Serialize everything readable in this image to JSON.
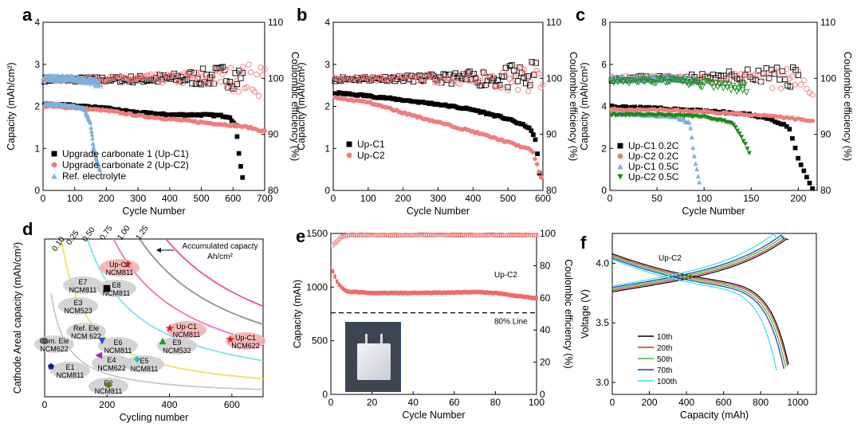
{
  "chart_data": [
    {
      "id": "a",
      "type": "scatter",
      "panel_label": "a",
      "xlabel": "Cycle Number",
      "ylabel": "Capacity (mAh/cm²)",
      "y2label": "Coulombic efficiency (%)",
      "xlim": [
        0,
        700
      ],
      "ylim": [
        0,
        4
      ],
      "y2lim": [
        80,
        110
      ],
      "xticks": [
        0,
        100,
        200,
        300,
        400,
        500,
        600,
        700
      ],
      "yticks": [
        0,
        1,
        2,
        3,
        4
      ],
      "y2ticks": [
        80,
        90,
        100,
        110
      ],
      "legend": [
        "Upgrade carbonate 1 (Up-C1)",
        "Upgrade carbonate 2 (Up-C2)",
        "Ref. electrolyte"
      ],
      "series": [
        {
          "name": "Upgrade carbonate 1 (Up-C1)",
          "color": "#000000",
          "marker": "square",
          "capacity": [
            [
              5,
              2.05
            ],
            [
              100,
              2.02
            ],
            [
              200,
              1.95
            ],
            [
              300,
              1.85
            ],
            [
              400,
              1.8
            ],
            [
              500,
              1.8
            ],
            [
              560,
              1.78
            ],
            [
              590,
              1.75
            ],
            [
              610,
              1.5
            ],
            [
              620,
              0.8
            ],
            [
              630,
              0.3
            ]
          ],
          "ce": [
            [
              5,
              99.8
            ],
            [
              200,
              99.8
            ],
            [
              400,
              99.9
            ],
            [
              500,
              100.2
            ],
            [
              600,
              100.5
            ],
            [
              630,
              100
            ]
          ]
        },
        {
          "name": "Upgrade carbonate 2 (Up-C2)",
          "color": "#f07c7c",
          "marker": "circle",
          "capacity": [
            [
              5,
              2.0
            ],
            [
              100,
              1.97
            ],
            [
              200,
              1.9
            ],
            [
              300,
              1.78
            ],
            [
              400,
              1.7
            ],
            [
              500,
              1.62
            ],
            [
              600,
              1.55
            ],
            [
              650,
              1.5
            ],
            [
              700,
              1.4
            ]
          ],
          "ce": [
            [
              5,
              99.8
            ],
            [
              200,
              99.9
            ],
            [
              400,
              100
            ],
            [
              600,
              100
            ],
            [
              700,
              99.9
            ]
          ]
        },
        {
          "name": "Ref. electrolyte",
          "color": "#7fb0dc",
          "marker": "triangle",
          "capacity": [
            [
              5,
              2.05
            ],
            [
              50,
              2.05
            ],
            [
              100,
              2.0
            ],
            [
              130,
              1.95
            ],
            [
              150,
              1.6
            ],
            [
              160,
              1.0
            ],
            [
              170,
              0.7
            ],
            [
              180,
              0.5
            ]
          ],
          "ce": [
            [
              5,
              100
            ],
            [
              100,
              100
            ],
            [
              150,
              99.5
            ],
            [
              180,
              99
            ]
          ]
        }
      ]
    },
    {
      "id": "b",
      "type": "scatter",
      "panel_label": "b",
      "xlabel": "Cycle Number",
      "ylabel": "Capacity (mAh/cm²)",
      "y2label": "Coulombic efficiency (%)",
      "xlim": [
        0,
        600
      ],
      "ylim": [
        0,
        4
      ],
      "y2lim": [
        80,
        110
      ],
      "xticks": [
        0,
        100,
        200,
        300,
        400,
        500,
        600
      ],
      "yticks": [
        0,
        1,
        2,
        3,
        4
      ],
      "y2ticks": [
        80,
        90,
        100,
        110
      ],
      "legend": [
        "Up-C1",
        "Up-C2"
      ],
      "series": [
        {
          "name": "Up-C1",
          "color": "#000000",
          "marker": "square",
          "capacity": [
            [
              5,
              2.32
            ],
            [
              100,
              2.25
            ],
            [
              200,
              2.15
            ],
            [
              300,
              2.05
            ],
            [
              400,
              1.92
            ],
            [
              500,
              1.7
            ],
            [
              560,
              1.5
            ],
            [
              580,
              1.2
            ],
            [
              590,
              0.4
            ]
          ],
          "ce": [
            [
              5,
              99.9
            ],
            [
              200,
              100
            ],
            [
              400,
              100
            ],
            [
              580,
              100.2
            ]
          ]
        },
        {
          "name": "Up-C2",
          "color": "#f07c7c",
          "marker": "circle",
          "capacity": [
            [
              5,
              2.2
            ],
            [
              100,
              2.1
            ],
            [
              200,
              1.85
            ],
            [
              300,
              1.62
            ],
            [
              400,
              1.4
            ],
            [
              500,
              1.15
            ],
            [
              570,
              0.95
            ],
            [
              595,
              0.3
            ]
          ],
          "ce": [
            [
              5,
              99.9
            ],
            [
              300,
              100
            ],
            [
              600,
              99.8
            ]
          ]
        }
      ]
    },
    {
      "id": "c",
      "type": "scatter",
      "panel_label": "c",
      "xlabel": "Cycle Number",
      "ylabel": "Capacity (mAh/cm²)",
      "y2label": "Coulombic efficiency (%)",
      "xlim": [
        0,
        220
      ],
      "ylim": [
        0,
        8
      ],
      "y2lim": [
        80,
        110
      ],
      "xticks": [
        0,
        50,
        100,
        150,
        200
      ],
      "yticks": [
        0,
        2,
        4,
        6,
        8
      ],
      "y2ticks": [
        80,
        90,
        100,
        110
      ],
      "legend": [
        "Up-C1 0.2C",
        "Up-C2 0.2C",
        "Up-C1 0.5C",
        "Up-C2 0.5C"
      ],
      "series": [
        {
          "name": "Up-C1 0.2C",
          "color": "#000000",
          "marker": "square",
          "capacity": [
            [
              2,
              4.0
            ],
            [
              50,
              3.9
            ],
            [
              100,
              3.8
            ],
            [
              150,
              3.6
            ],
            [
              170,
              3.4
            ],
            [
              190,
              3.0
            ],
            [
              200,
              1.5
            ],
            [
              215,
              0.05
            ]
          ],
          "ce": [
            [
              2,
              100
            ],
            [
              100,
              100.2
            ],
            [
              200,
              100.5
            ]
          ]
        },
        {
          "name": "Up-C2 0.2C",
          "color": "#f07c7c",
          "marker": "circle",
          "capacity": [
            [
              2,
              3.85
            ],
            [
              50,
              3.85
            ],
            [
              100,
              3.75
            ],
            [
              150,
              3.6
            ],
            [
              200,
              3.4
            ],
            [
              215,
              3.3
            ]
          ],
          "ce": [
            [
              2,
              100
            ],
            [
              100,
              100
            ],
            [
              215,
              99.5
            ]
          ]
        },
        {
          "name": "Up-C1 0.5C",
          "color": "#7fb0dc",
          "marker": "triangle",
          "capacity": [
            [
              2,
              3.7
            ],
            [
              40,
              3.6
            ],
            [
              70,
              3.5
            ],
            [
              85,
              3.2
            ],
            [
              90,
              1.5
            ],
            [
              95,
              0.4
            ]
          ],
          "ce": [
            [
              2,
              100
            ],
            [
              60,
              100
            ],
            [
              90,
              99.5
            ]
          ]
        },
        {
          "name": "Up-C2 0.5C",
          "color": "#1a8a1a",
          "marker": "triangle-down",
          "capacity": [
            [
              2,
              3.6
            ],
            [
              50,
              3.6
            ],
            [
              100,
              3.5
            ],
            [
              130,
              3.2
            ],
            [
              140,
              2.5
            ],
            [
              148,
              1.8
            ]
          ],
          "ce": [
            [
              2,
              99.5
            ],
            [
              75,
              99.5
            ],
            [
              145,
              98
            ]
          ]
        }
      ]
    },
    {
      "id": "d",
      "type": "scatter",
      "panel_label": "d",
      "xlabel": "Cycling number",
      "ylabel": "Cathode Areal capacity (mAh/cm²)",
      "xlim": [
        0,
        700
      ],
      "xticks": [
        0,
        200,
        400,
        600
      ],
      "contour_levels": [
        "0.10",
        "0.25",
        "0.50",
        "0.75",
        "1.00",
        "1.25"
      ],
      "annotation": "Accumulated capacty Ah/cm²",
      "points": [
        {
          "label": "Up-C2\nNCM811",
          "x": 200,
          "color": "#e02020",
          "marker": "star"
        },
        {
          "label": "E7\nNCM811",
          "x": 90,
          "color": "#555555",
          "marker": "none"
        },
        {
          "label": "E8\nNCM811",
          "x": 225,
          "color": "#000000",
          "marker": "square"
        },
        {
          "label": "E3\nNCM523",
          "x": 80,
          "color": "#555555",
          "marker": "none"
        },
        {
          "label": "Ref. Ele\nNCM 622",
          "x": 120,
          "color": "#555555",
          "marker": "none"
        },
        {
          "label": "Up-C1\nNCM811",
          "x": 405,
          "color": "#e02020",
          "marker": "star"
        },
        {
          "label": "Up-C1\nNCM622",
          "x": 620,
          "color": "#e02020",
          "marker": "star"
        },
        {
          "label": "Com. Ele\nNCM622",
          "x": 40,
          "color": "#555555",
          "marker": "circle"
        },
        {
          "label": "E6\nNCM811",
          "x": 200,
          "color": "#2050e0",
          "marker": "triangle-down"
        },
        {
          "label": "E9\nNCM532",
          "x": 395,
          "color": "#20a020",
          "marker": "triangle"
        },
        {
          "label": "E4\nNCM622",
          "x": 185,
          "color": "#b020c0",
          "marker": "triangle-left"
        },
        {
          "label": "E5\nNCM811",
          "x": 310,
          "color": "#20c0d0",
          "marker": "diamond"
        },
        {
          "label": "E1\nNCM811",
          "x": 80,
          "color": "#102080",
          "marker": "pentagon"
        },
        {
          "label": "E2\nNCM811",
          "x": 200,
          "color": "#707020",
          "marker": "hexagon"
        }
      ]
    },
    {
      "id": "e",
      "type": "scatter",
      "panel_label": "e",
      "xlabel": "Cycle Number",
      "ylabel": "Capacity (mAh)",
      "y2label": "Coulombic efficiency (%)",
      "xlim": [
        0,
        100
      ],
      "ylim": [
        0,
        1500
      ],
      "y2lim": [
        0,
        100
      ],
      "xticks": [
        0,
        20,
        40,
        60,
        80,
        100
      ],
      "yticks": [
        0,
        500,
        1000,
        1500
      ],
      "y2ticks": [
        0,
        20,
        40,
        60,
        80,
        100
      ],
      "reference_line": {
        "label": "80% Line",
        "value": 760
      },
      "series_label": "Up-C2",
      "capacity": [
        [
          1,
          1150
        ],
        [
          2,
          1100
        ],
        [
          3,
          1050
        ],
        [
          5,
          1000
        ],
        [
          8,
          960
        ],
        [
          20,
          945
        ],
        [
          40,
          945
        ],
        [
          60,
          950
        ],
        [
          70,
          955
        ],
        [
          80,
          945
        ],
        [
          90,
          920
        ],
        [
          100,
          895
        ]
      ],
      "ce": [
        [
          1,
          93
        ],
        [
          3,
          95
        ],
        [
          5,
          98
        ],
        [
          10,
          99
        ],
        [
          50,
          99
        ],
        [
          100,
          99
        ]
      ]
    },
    {
      "id": "f",
      "type": "line",
      "panel_label": "f",
      "xlabel": "Capacity (mAh)",
      "ylabel": "Voltage (V)",
      "xlim": [
        0,
        1100
      ],
      "ylim": [
        2.9,
        4.25
      ],
      "xticks": [
        0,
        200,
        400,
        600,
        800,
        1000
      ],
      "yticks": [
        3.0,
        3.5,
        4.0
      ],
      "series_label": "Up-C2",
      "series": [
        {
          "name": "10th",
          "color": "#000000",
          "cap": 950
        },
        {
          "name": "20th",
          "color": "#d83020",
          "cap": 945
        },
        {
          "name": "50th",
          "color": "#30c030",
          "cap": 935
        },
        {
          "name": "70th",
          "color": "#2030c0",
          "cap": 925
        },
        {
          "name": "100th",
          "color": "#30e0f0",
          "cap": 885
        }
      ]
    }
  ]
}
